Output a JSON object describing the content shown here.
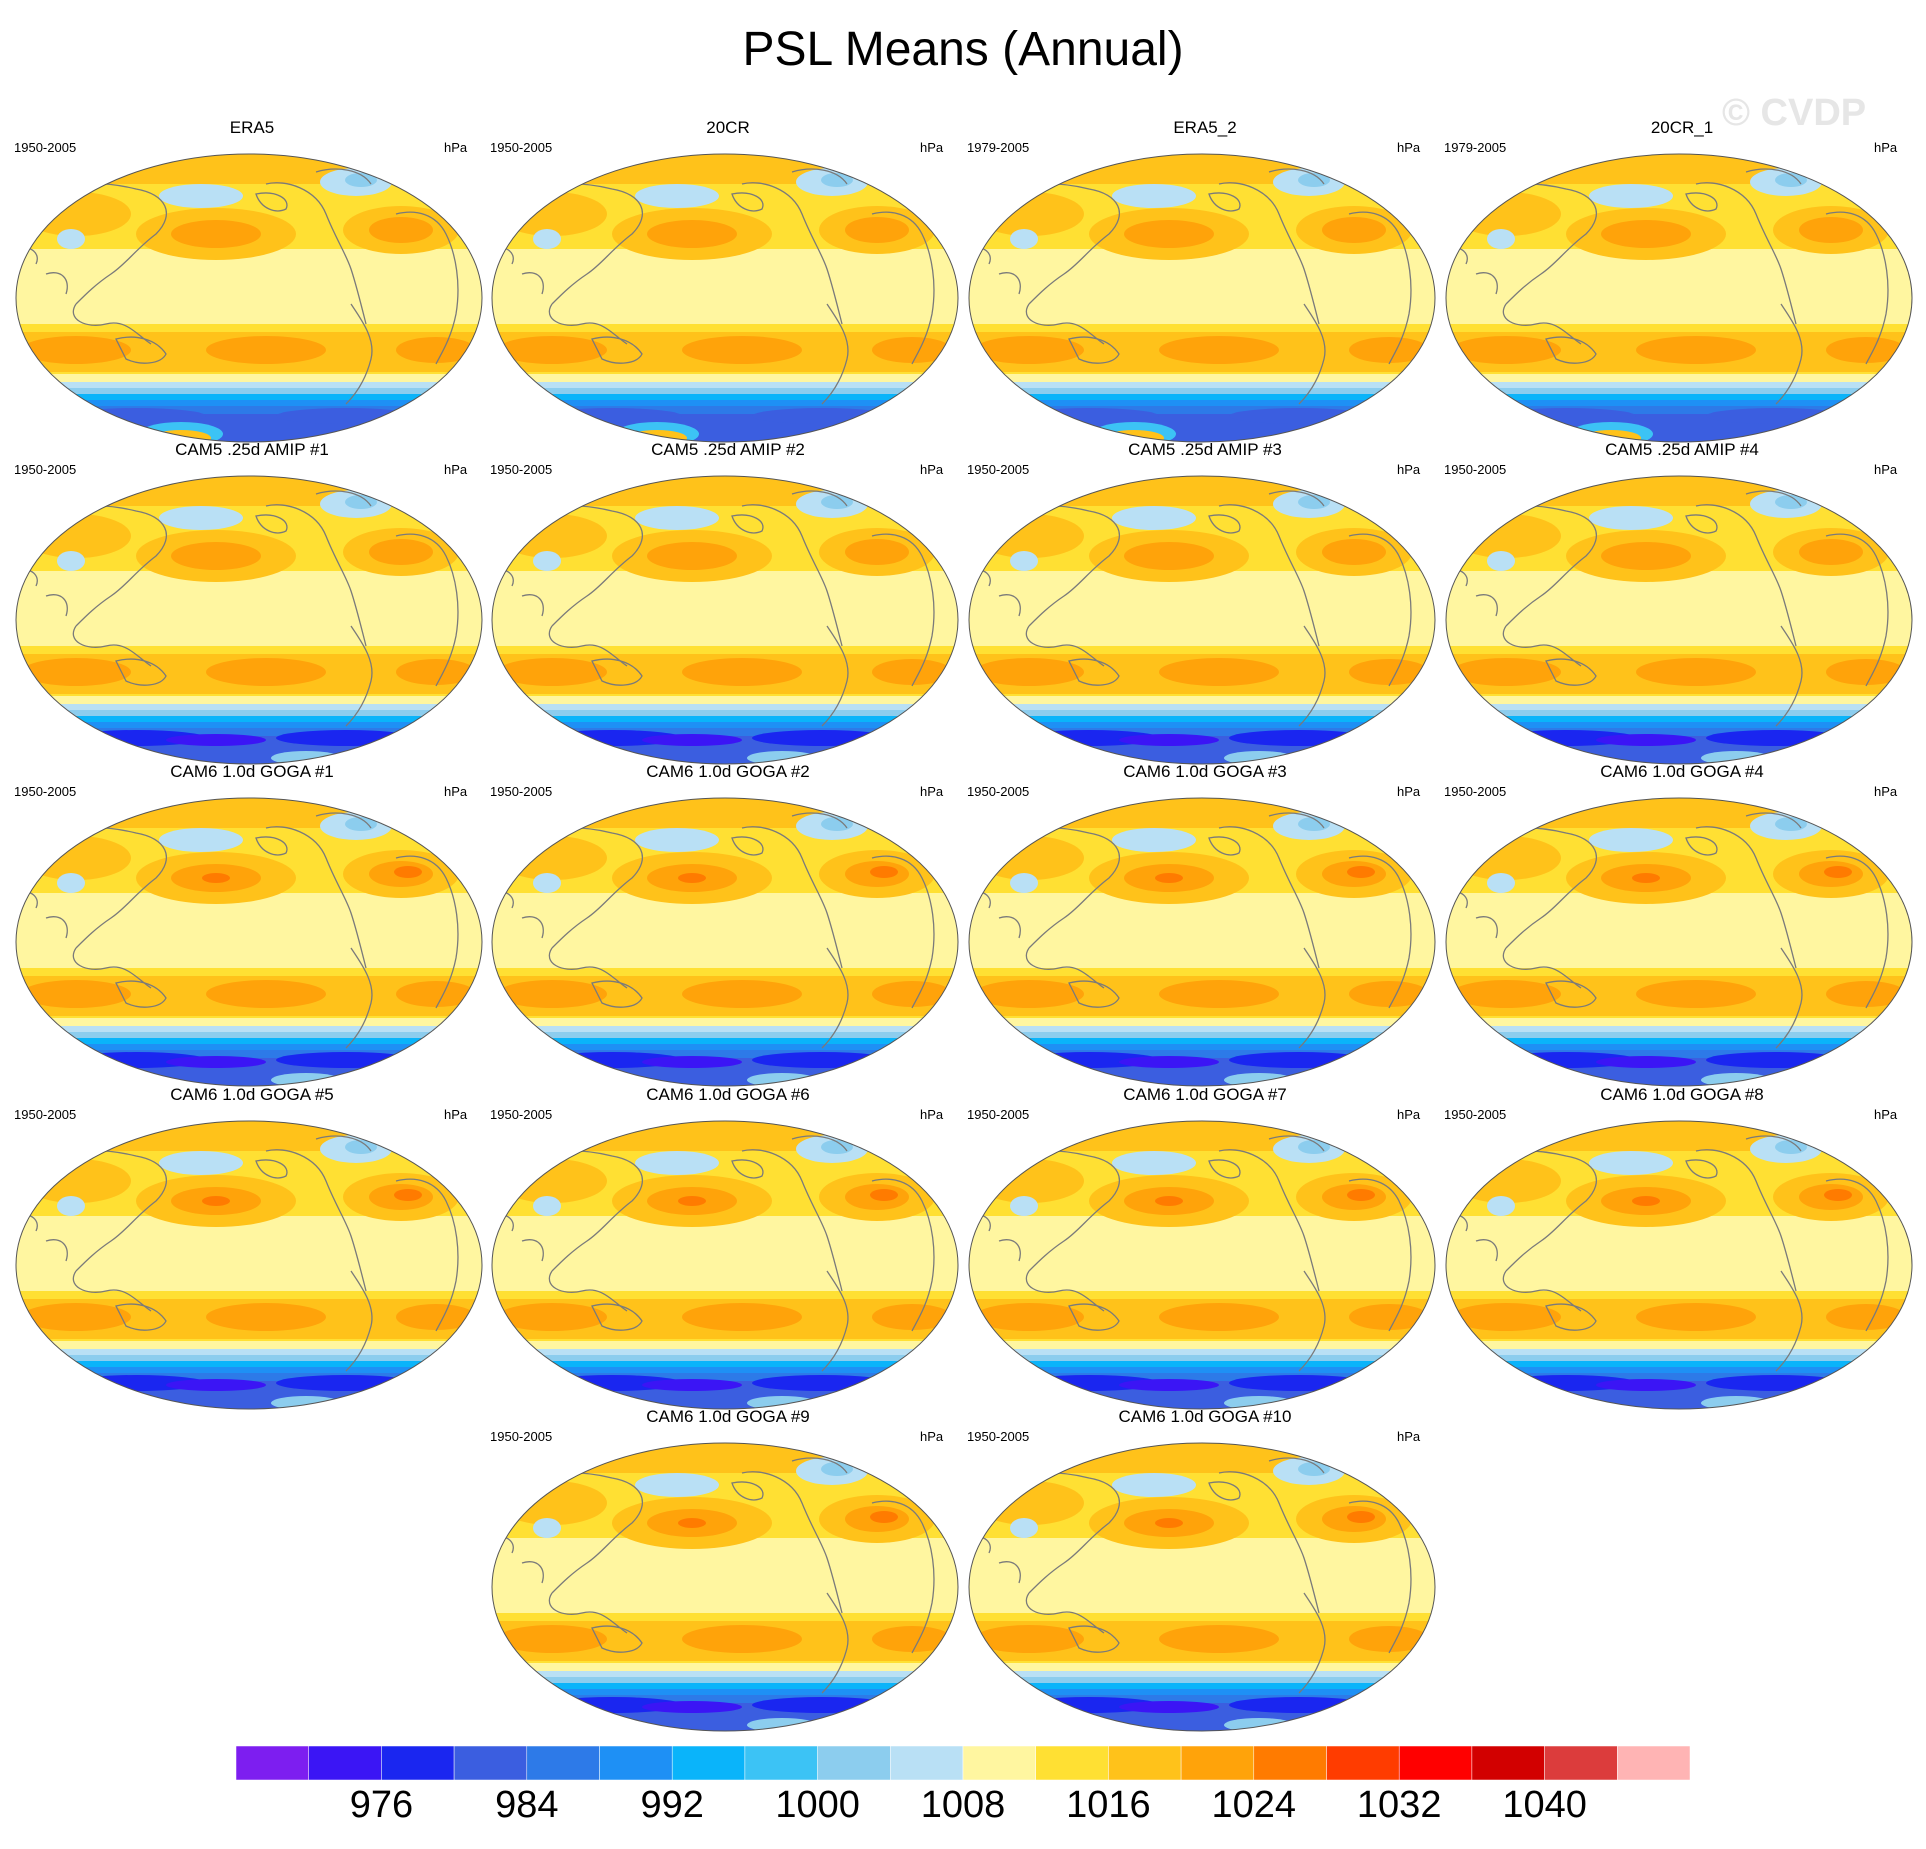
{
  "title": "PSL Means (Annual)",
  "watermark": "© CVDP",
  "colors": {
    "palette": [
      "#7d1ef0",
      "#3b15f5",
      "#1a26f0",
      "#3b5ee0",
      "#2d7ae8",
      "#1e90f5",
      "#0ab4fa",
      "#3cc3f5",
      "#8ccdee",
      "#b9e0f5",
      "#fff6a0",
      "#ffe033",
      "#ffc21a",
      "#ffa30a",
      "#ff7b00",
      "#ff3c00",
      "#ff0000",
      "#d20000",
      "#dc3c3c",
      "#ffb4b4"
    ],
    "land_outline": "#7a7a7a",
    "map_border": "#555555"
  },
  "panels": [
    {
      "title": "ERA5",
      "period": "1950-2005",
      "units": "hPa",
      "style": "obs"
    },
    {
      "title": "20CR",
      "period": "1950-2005",
      "units": "hPa",
      "style": "obs"
    },
    {
      "title": "ERA5_2",
      "period": "1979-2005",
      "units": "hPa",
      "style": "obs"
    },
    {
      "title": "20CR_1",
      "period": "1979-2005",
      "units": "hPa",
      "style": "obs"
    },
    {
      "title": "CAM5 .25d AMIP #1",
      "period": "1950-2005",
      "units": "hPa",
      "style": "amip"
    },
    {
      "title": "CAM5 .25d AMIP #2",
      "period": "1950-2005",
      "units": "hPa",
      "style": "amip"
    },
    {
      "title": "CAM5 .25d AMIP #3",
      "period": "1950-2005",
      "units": "hPa",
      "style": "amip"
    },
    {
      "title": "CAM5 .25d AMIP #4",
      "period": "1950-2005",
      "units": "hPa",
      "style": "amip"
    },
    {
      "title": "CAM6 1.0d GOGA #1",
      "period": "1950-2005",
      "units": "hPa",
      "style": "goga"
    },
    {
      "title": "CAM6 1.0d GOGA #2",
      "period": "1950-2005",
      "units": "hPa",
      "style": "goga"
    },
    {
      "title": "CAM6 1.0d GOGA #3",
      "period": "1950-2005",
      "units": "hPa",
      "style": "goga"
    },
    {
      "title": "CAM6 1.0d GOGA #4",
      "period": "1950-2005",
      "units": "hPa",
      "style": "goga"
    },
    {
      "title": "CAM6 1.0d GOGA #5",
      "period": "1950-2005",
      "units": "hPa",
      "style": "goga"
    },
    {
      "title": "CAM6 1.0d GOGA #6",
      "period": "1950-2005",
      "units": "hPa",
      "style": "goga"
    },
    {
      "title": "CAM6 1.0d GOGA #7",
      "period": "1950-2005",
      "units": "hPa",
      "style": "goga"
    },
    {
      "title": "CAM6 1.0d GOGA #8",
      "period": "1950-2005",
      "units": "hPa",
      "style": "goga"
    },
    {
      "title": "CAM6 1.0d GOGA #9",
      "period": "1950-2005",
      "units": "hPa",
      "style": "goga"
    },
    {
      "title": "CAM6 1.0d GOGA #10",
      "period": "1950-2005",
      "units": "hPa",
      "style": "goga"
    }
  ],
  "colorbar": {
    "labels": [
      "976",
      "984",
      "992",
      "1000",
      "1008",
      "1016",
      "1024",
      "1032",
      "1040"
    ]
  }
}
